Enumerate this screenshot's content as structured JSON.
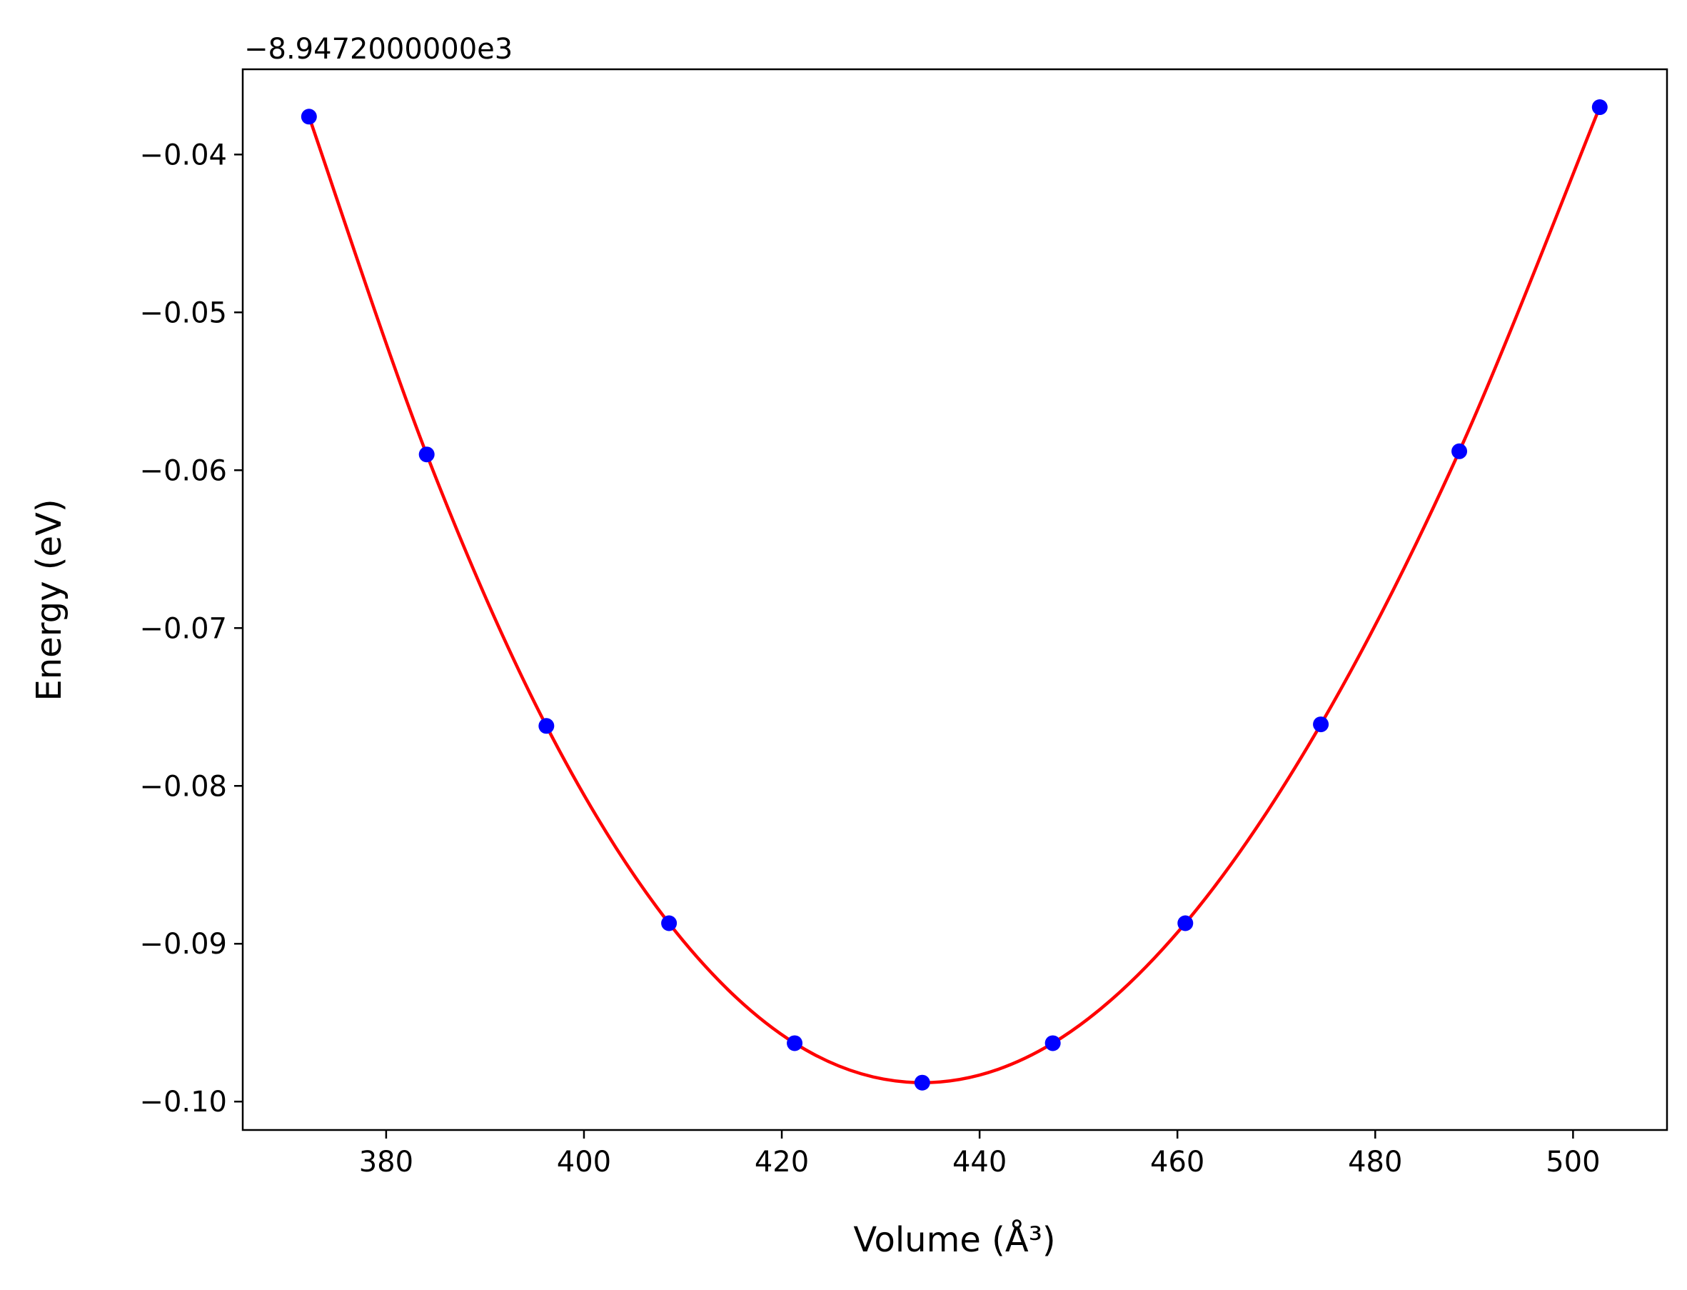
{
  "chart_data": {
    "type": "scatter",
    "xlabel": "Volume (Å³)",
    "ylabel": "Energy (eV)",
    "y_offset_label": "−8.9472000000e3",
    "xlim": [
      365.5,
      509.5
    ],
    "ylim": [
      -0.1018,
      -0.0346
    ],
    "x_ticks": [
      380,
      400,
      420,
      440,
      460,
      480,
      500
    ],
    "x_tick_labels": [
      "380",
      "400",
      "420",
      "440",
      "460",
      "480",
      "500"
    ],
    "y_ticks": [
      -0.04,
      -0.05,
      -0.06,
      -0.07,
      -0.08,
      -0.09,
      -0.1
    ],
    "y_tick_labels": [
      "−0.04",
      "−0.05",
      "−0.06",
      "−0.07",
      "−0.08",
      "−0.09",
      "−0.10"
    ],
    "grid": false,
    "series": [
      {
        "kind": "points",
        "color": "#0000ff",
        "x": [
          372.2,
          384.1,
          396.2,
          408.6,
          421.3,
          434.2,
          447.4,
          460.8,
          474.5,
          488.5,
          502.7
        ],
        "y": [
          -0.0376,
          -0.059,
          -0.0762,
          -0.0887,
          -0.0963,
          -0.0988,
          -0.0963,
          -0.0887,
          -0.0761,
          -0.0588,
          -0.037
        ]
      },
      {
        "kind": "fit-line",
        "color": "#ff0000",
        "x": [
          372.2,
          384.1,
          396.2,
          408.6,
          421.3,
          434.2,
          447.4,
          460.8,
          474.5,
          488.5,
          502.7
        ],
        "y": [
          -0.0376,
          -0.059,
          -0.0762,
          -0.0887,
          -0.0963,
          -0.0988,
          -0.0963,
          -0.0887,
          -0.0761,
          -0.0588,
          -0.037
        ]
      }
    ]
  }
}
